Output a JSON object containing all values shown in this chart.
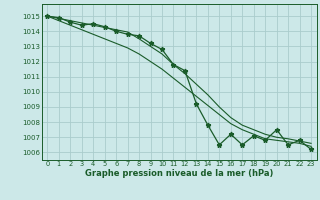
{
  "bg_color": "#cce8e8",
  "grid_color": "#aacccc",
  "line_color": "#1a5c2a",
  "xlabel": "Graphe pression niveau de la mer (hPa)",
  "ylim": [
    1005.5,
    1015.8
  ],
  "xlim": [
    -0.5,
    23.5
  ],
  "yticks": [
    1006,
    1007,
    1008,
    1009,
    1010,
    1011,
    1012,
    1013,
    1014,
    1015
  ],
  "xticks": [
    0,
    1,
    2,
    3,
    4,
    5,
    6,
    7,
    8,
    9,
    10,
    11,
    12,
    13,
    14,
    15,
    16,
    17,
    18,
    19,
    20,
    21,
    22,
    23
  ],
  "hours": [
    0,
    1,
    2,
    3,
    4,
    5,
    6,
    7,
    8,
    9,
    10,
    11,
    12,
    13,
    14,
    15,
    16,
    17,
    18,
    19,
    20,
    21,
    22,
    23
  ],
  "pressure_main": [
    1015.0,
    1014.9,
    1014.6,
    1014.4,
    1014.5,
    1014.3,
    1014.0,
    1013.8,
    1013.7,
    1013.2,
    1012.8,
    1011.8,
    1011.4,
    1009.2,
    1007.8,
    1006.5,
    1007.2,
    1006.5,
    1007.1,
    1006.8,
    1007.5,
    1006.5,
    1006.8,
    1006.2
  ],
  "pressure_trend1": [
    1015.0,
    1014.85,
    1014.7,
    1014.55,
    1014.4,
    1014.25,
    1014.1,
    1013.95,
    1013.5,
    1013.0,
    1012.5,
    1011.8,
    1011.2,
    1010.5,
    1009.8,
    1009.0,
    1008.3,
    1007.8,
    1007.5,
    1007.2,
    1007.0,
    1006.9,
    1006.75,
    1006.6
  ],
  "pressure_trend2": [
    1015.0,
    1014.7,
    1014.4,
    1014.1,
    1013.8,
    1013.5,
    1013.2,
    1012.9,
    1012.5,
    1012.0,
    1011.5,
    1010.9,
    1010.3,
    1009.7,
    1009.1,
    1008.5,
    1007.9,
    1007.5,
    1007.2,
    1006.9,
    1006.8,
    1006.7,
    1006.6,
    1006.4
  ]
}
